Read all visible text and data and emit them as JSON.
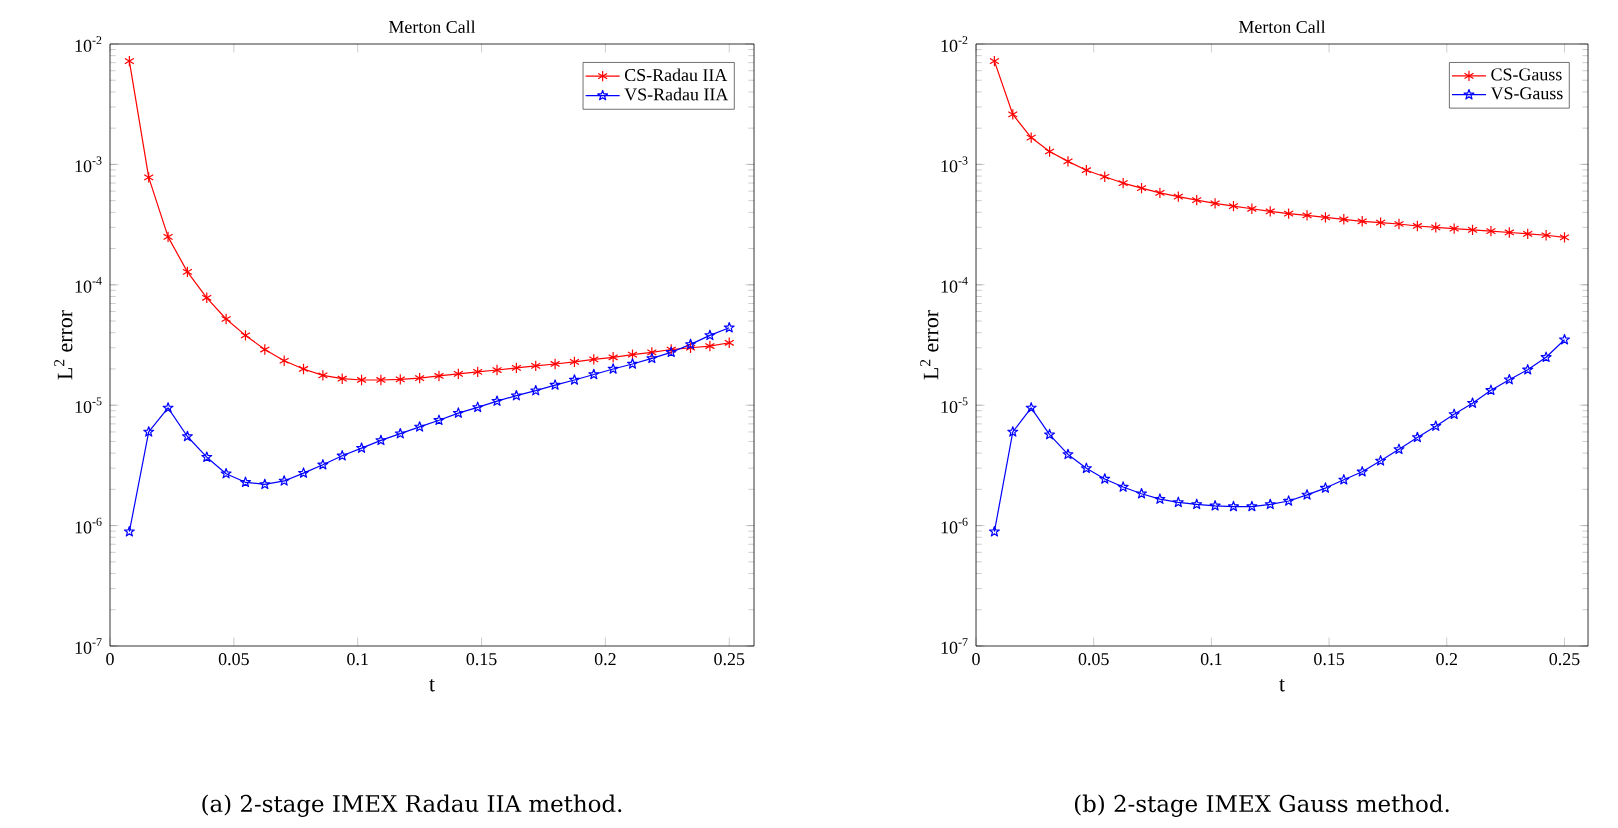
{
  "chart_data": [
    {
      "type": "line",
      "title": "Merton Call",
      "xlabel": "t",
      "ylabel": "L$^{2}$ error",
      "annotations": [
        "(a) 2-stage IMEX Radau IIA method."
      ],
      "x": [
        0.0078125,
        0.015625,
        0.0234375,
        0.03125,
        0.0390625,
        0.046875,
        0.0546875,
        0.0625,
        0.0703125,
        0.078125,
        0.0859375,
        0.09375,
        0.1015625,
        0.109375,
        0.1171875,
        0.125,
        0.1328125,
        0.140625,
        0.1484375,
        0.15625,
        0.1640625,
        0.171875,
        0.1796875,
        0.1875,
        0.1953125,
        0.203125,
        0.2109375,
        0.21875,
        0.2265625,
        0.234375,
        0.2421875,
        0.25
      ],
      "series": [
        {
          "name": "CS-Radau IIA",
          "color": "#ff0000",
          "marker": "cross",
          "values": [
            0.0072,
            0.00078,
            0.00025,
            0.000128,
            7.8e-05,
            5.2e-05,
            3.8e-05,
            2.9e-05,
            2.34e-05,
            2e-05,
            1.77e-05,
            1.66e-05,
            1.62e-05,
            1.62e-05,
            1.64e-05,
            1.68e-05,
            1.75e-05,
            1.82e-05,
            1.89e-05,
            1.96e-05,
            2.04e-05,
            2.12e-05,
            2.2e-05,
            2.29e-05,
            2.4e-05,
            2.5e-05,
            2.63e-05,
            2.75e-05,
            2.9e-05,
            3e-05,
            3.1e-05,
            3.3e-05
          ]
        },
        {
          "name": "VS-Radau IIA",
          "color": "#0000ff",
          "marker": "star",
          "values": [
            8.9e-07,
            6e-06,
            9.5e-06,
            5.5e-06,
            3.7e-06,
            2.7e-06,
            2.29e-06,
            2.2e-06,
            2.35e-06,
            2.73e-06,
            3.2e-06,
            3.8e-06,
            4.4e-06,
            5.1e-06,
            5.8e-06,
            6.6e-06,
            7.5e-06,
            8.6e-06,
            9.6e-06,
            1.08e-05,
            1.2e-05,
            1.32e-05,
            1.47e-05,
            1.62e-05,
            1.8e-05,
            2e-05,
            2.2e-05,
            2.45e-05,
            2.75e-05,
            3.2e-05,
            3.8e-05,
            4.4e-05
          ]
        }
      ],
      "xlim": [
        0,
        0.26
      ],
      "ylim": [
        1e-07,
        0.01
      ],
      "log": "y",
      "legend": "top right",
      "line_style": "solid",
      "xticks": [
        0,
        0.05,
        0.1,
        0.15,
        0.2,
        0.25
      ],
      "yticks": [
        {
          "value": 1e-07,
          "label": "10$^{-7}$"
        },
        {
          "value": 1e-06,
          "label": "10$^{-6}$"
        },
        {
          "value": 1e-05,
          "label": "10$^{-5}$"
        },
        {
          "value": 0.0001,
          "label": "10$^{-4}$"
        },
        {
          "value": 0.001,
          "label": "10$^{-3}$"
        },
        {
          "value": 0.01,
          "label": "10$^{-2}$"
        }
      ]
    },
    {
      "type": "line",
      "title": "Merton Call",
      "xlabel": "t",
      "ylabel": "L$^{2}$ error",
      "annotations": [
        "(b) 2-stage IMEX Gauss method."
      ],
      "x": [
        0.0078125,
        0.015625,
        0.0234375,
        0.03125,
        0.0390625,
        0.046875,
        0.0546875,
        0.0625,
        0.0703125,
        0.078125,
        0.0859375,
        0.09375,
        0.1015625,
        0.109375,
        0.1171875,
        0.125,
        0.1328125,
        0.140625,
        0.1484375,
        0.15625,
        0.1640625,
        0.171875,
        0.1796875,
        0.1875,
        0.1953125,
        0.203125,
        0.2109375,
        0.21875,
        0.2265625,
        0.234375,
        0.2421875,
        0.25
      ],
      "series": [
        {
          "name": "CS-Gauss",
          "color": "#ff0000",
          "marker": "cross",
          "values": [
            0.0072,
            0.0026,
            0.00167,
            0.00128,
            0.00106,
            0.000895,
            0.00079,
            0.0007,
            0.000635,
            0.00058,
            0.00054,
            0.000505,
            0.000475,
            0.00045,
            0.000428,
            0.000407,
            0.00039,
            0.000377,
            0.000363,
            0.00035,
            0.000337,
            0.000328,
            0.00032,
            0.000308,
            0.0003,
            0.000293,
            0.000286,
            0.000279,
            0.000272,
            0.000265,
            0.000258,
            0.000248
          ]
        },
        {
          "name": "VS-Gauss",
          "color": "#0000ff",
          "marker": "star",
          "values": [
            8.9e-07,
            6e-06,
            9.5e-06,
            5.7e-06,
            3.9e-06,
            2.99e-06,
            2.44e-06,
            2.09e-06,
            1.84e-06,
            1.66e-06,
            1.56e-06,
            1.5e-06,
            1.46e-06,
            1.44e-06,
            1.44e-06,
            1.5e-06,
            1.6e-06,
            1.8e-06,
            2.05e-06,
            2.4e-06,
            2.8e-06,
            3.45e-06,
            4.3e-06,
            5.4e-06,
            6.7e-06,
            8.4e-06,
            1.04e-05,
            1.33e-05,
            1.63e-05,
            1.97e-05,
            2.5e-05,
            3.5e-05
          ]
        }
      ],
      "xlim": [
        0,
        0.26
      ],
      "ylim": [
        1e-07,
        0.01
      ],
      "log": "y",
      "legend": "top right",
      "line_style": "solid",
      "xticks": [
        0,
        0.05,
        0.1,
        0.15,
        0.2,
        0.25
      ],
      "yticks": [
        {
          "value": 1e-07,
          "label": "10$^{-7}$"
        },
        {
          "value": 1e-06,
          "label": "10$^{-6}$"
        },
        {
          "value": 1e-05,
          "label": "10$^{-5}$"
        },
        {
          "value": 0.0001,
          "label": "10$^{-4}$"
        },
        {
          "value": 0.001,
          "label": "10$^{-3}$"
        },
        {
          "value": 0.01,
          "label": "10$^{-2}$"
        }
      ]
    }
  ]
}
